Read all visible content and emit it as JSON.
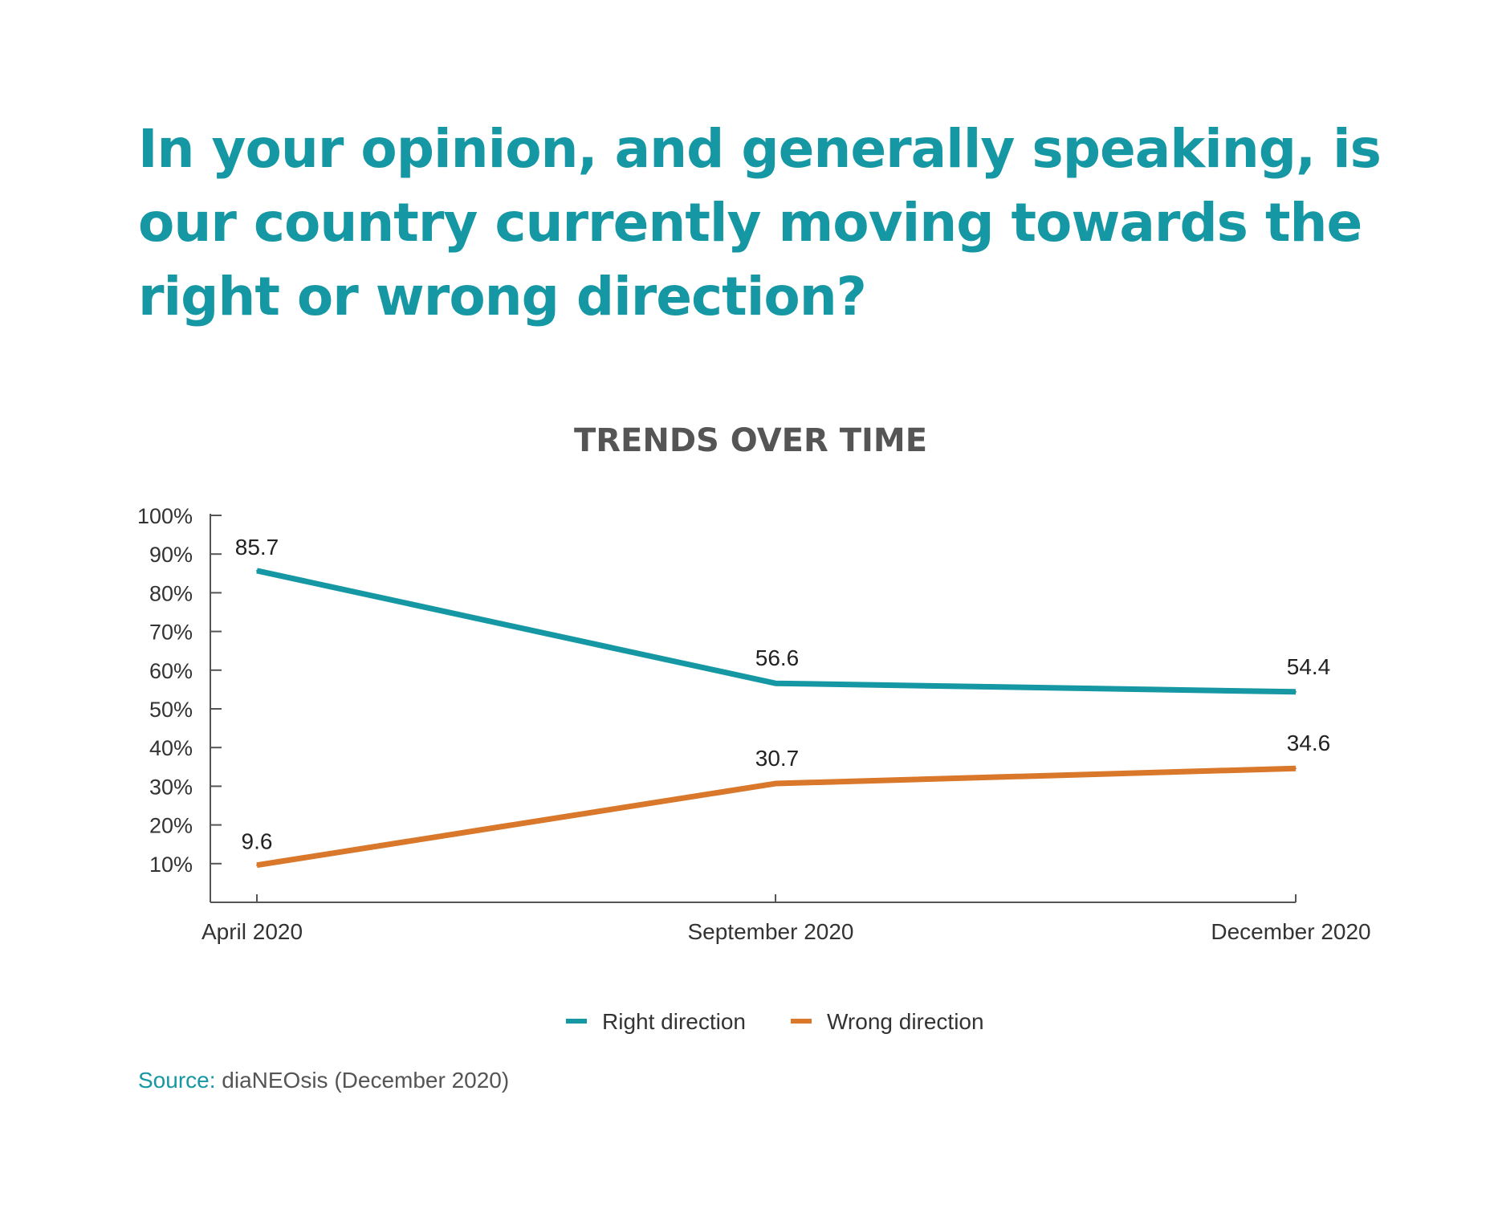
{
  "headline": {
    "lines": [
      "In your opinion, and generally speaking, is",
      "our country currently moving towards the",
      "right or wrong direction?"
    ]
  },
  "chart_data": {
    "type": "line",
    "title": "TRENDS OVER TIME",
    "categories": [
      "April 2020",
      "September 2020",
      "December 2020"
    ],
    "y_ticks": [
      "10%",
      "20%",
      "30%",
      "40%",
      "50%",
      "60%",
      "70%",
      "80%",
      "90%",
      "100%"
    ],
    "ylim": [
      0,
      100
    ],
    "grid": false,
    "legend_position": "bottom-center",
    "series": [
      {
        "name": "Right direction",
        "values": [
          85.7,
          56.6,
          54.4
        ],
        "labels": [
          "85.7",
          "56.6",
          "54.4"
        ],
        "color": "#1597a4"
      },
      {
        "name": "Wrong direction",
        "values": [
          9.6,
          30.7,
          34.6
        ],
        "labels": [
          "9.6",
          "30.7",
          "34.6"
        ],
        "color": "#d9772a"
      }
    ]
  },
  "source": {
    "label": "Source:",
    "text": " diaNEOsis (December 2020)"
  }
}
